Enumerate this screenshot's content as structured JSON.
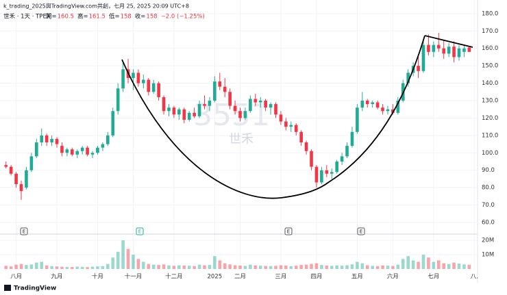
{
  "header": {
    "attribution": "k_trading_2025與TradingView.com共創，七月 25, 2025 20:09 UTC+8",
    "footer_logo": "TradingView"
  },
  "chart_data": {
    "type": "candlestick",
    "symbol": "世禾 · 1天 · TPEX",
    "legend_labels": [
      "開=",
      "高=",
      "低=",
      "收="
    ],
    "legend_change": "−2.0 (−1.25%)",
    "watermark": [
      "3551",
      "世禾"
    ],
    "earnings_markers": [
      "E",
      "E",
      "E",
      "E"
    ],
    "up_color": "#22ab94",
    "down_color": "#f23645",
    "grid": true,
    "categories": [
      null,
      null,
      "八月",
      null,
      null,
      null,
      null,
      null,
      null,
      null,
      "九月",
      null,
      null,
      null,
      null,
      null,
      null,
      null,
      "十月",
      null,
      null,
      null,
      null,
      null,
      null,
      "十一月",
      null,
      null,
      null,
      null,
      null,
      null,
      null,
      "十二月",
      null,
      null,
      null,
      null,
      null,
      null,
      null,
      "2025",
      null,
      null,
      null,
      null,
      "二月",
      null,
      null,
      null,
      null,
      null,
      null,
      null,
      "三月",
      null,
      null,
      null,
      null,
      null,
      null,
      "四月",
      null,
      null,
      null,
      null,
      null,
      null,
      null,
      "五月",
      null,
      null,
      null,
      null,
      null,
      null,
      "六月",
      null,
      null,
      null,
      null,
      null,
      null,
      null,
      "七月",
      null,
      null,
      null,
      null,
      null,
      null,
      null,
      "八."
    ],
    "ohlc": [
      [
        93,
        95,
        91,
        92
      ],
      [
        92,
        93,
        87,
        88
      ],
      [
        88,
        89,
        80,
        82
      ],
      [
        82,
        84,
        73,
        78
      ],
      [
        80,
        92,
        79,
        90
      ],
      [
        90,
        100,
        89,
        98
      ],
      [
        98,
        108,
        97,
        106
      ],
      [
        106,
        114,
        104,
        110
      ],
      [
        110,
        111,
        104,
        106
      ],
      [
        106,
        110,
        104,
        108
      ],
      [
        108,
        109,
        103,
        105
      ],
      [
        104,
        106,
        98,
        100
      ],
      [
        100,
        103,
        98,
        102
      ],
      [
        102,
        103,
        98,
        99
      ],
      [
        99,
        102,
        97,
        101
      ],
      [
        101,
        104,
        99,
        103
      ],
      [
        103,
        104,
        98,
        99
      ],
      [
        99,
        101,
        97,
        100
      ],
      [
        100,
        104,
        99,
        103
      ],
      [
        103,
        106,
        101,
        105
      ],
      [
        105,
        112,
        104,
        110
      ],
      [
        110,
        126,
        109,
        124
      ],
      [
        124,
        140,
        122,
        137
      ],
      [
        137,
        152,
        135,
        148
      ],
      [
        148,
        154,
        140,
        143
      ],
      [
        143,
        148,
        136,
        146
      ],
      [
        146,
        148,
        138,
        140
      ],
      [
        140,
        145,
        137,
        142
      ],
      [
        142,
        143,
        133,
        135
      ],
      [
        135,
        142,
        134,
        140
      ],
      [
        140,
        141,
        130,
        132
      ],
      [
        132,
        133,
        122,
        124
      ],
      [
        124,
        128,
        121,
        126
      ],
      [
        126,
        127,
        120,
        122
      ],
      [
        122,
        126,
        119,
        125
      ],
      [
        125,
        126,
        117,
        119
      ],
      [
        119,
        124,
        118,
        123
      ],
      [
        123,
        126,
        120,
        121
      ],
      [
        121,
        130,
        120,
        128
      ],
      [
        128,
        133,
        125,
        127
      ],
      [
        127,
        132,
        124,
        130
      ],
      [
        130,
        144,
        129,
        141
      ],
      [
        141,
        146,
        136,
        138
      ],
      [
        138,
        143,
        132,
        135
      ],
      [
        135,
        137,
        125,
        127
      ],
      [
        127,
        130,
        122,
        124
      ],
      [
        124,
        126,
        118,
        120
      ],
      [
        120,
        126,
        119,
        124
      ],
      [
        124,
        133,
        123,
        131
      ],
      [
        131,
        134,
        127,
        129
      ],
      [
        129,
        132,
        126,
        130
      ],
      [
        130,
        131,
        124,
        126
      ],
      [
        126,
        129,
        122,
        128
      ],
      [
        128,
        129,
        120,
        122
      ],
      [
        122,
        124,
        116,
        118
      ],
      [
        118,
        120,
        113,
        115
      ],
      [
        115,
        118,
        112,
        116
      ],
      [
        116,
        117,
        110,
        112
      ],
      [
        112,
        113,
        104,
        106
      ],
      [
        106,
        107,
        99,
        101
      ],
      [
        101,
        102,
        90,
        92
      ],
      [
        92,
        93,
        80,
        83
      ],
      [
        83,
        92,
        82,
        90
      ],
      [
        90,
        93,
        86,
        88
      ],
      [
        88,
        91,
        85,
        89
      ],
      [
        89,
        96,
        88,
        95
      ],
      [
        95,
        100,
        93,
        98
      ],
      [
        98,
        106,
        97,
        104
      ],
      [
        104,
        115,
        103,
        112
      ],
      [
        112,
        128,
        111,
        126
      ],
      [
        126,
        135,
        124,
        130
      ],
      [
        130,
        131,
        126,
        128
      ],
      [
        128,
        130,
        126,
        129
      ],
      [
        129,
        130,
        125,
        126
      ],
      [
        126,
        128,
        122,
        124
      ],
      [
        124,
        127,
        122,
        125
      ],
      [
        125,
        128,
        122,
        123
      ],
      [
        123,
        132,
        122,
        130
      ],
      [
        130,
        142,
        129,
        140
      ],
      [
        140,
        148,
        138,
        146
      ],
      [
        146,
        152,
        144,
        150
      ],
      [
        150,
        156,
        143,
        147
      ],
      [
        147,
        165,
        146,
        162
      ],
      [
        162,
        168,
        156,
        158
      ],
      [
        158,
        164,
        155,
        162
      ],
      [
        162,
        169,
        158,
        160
      ],
      [
        160,
        165,
        154,
        157
      ],
      [
        157,
        163,
        155,
        161
      ],
      [
        161,
        164,
        152,
        155
      ],
      [
        155,
        162,
        153,
        160
      ],
      [
        158,
        162,
        155,
        160
      ],
      [
        160.5,
        161.5,
        158.0,
        158.0
      ],
      null
    ],
    "volume": [
      2200000,
      1800000,
      3000000,
      3500000,
      2800000,
      3200000,
      4500000,
      5000000,
      2500000,
      2000000,
      1800000,
      1600000,
      1500000,
      1400000,
      1700000,
      1500000,
      1300000,
      1600000,
      1800000,
      2000000,
      3500000,
      8000000,
      12000000,
      20000000,
      14000000,
      10000000,
      7000000,
      5000000,
      3500000,
      3000000,
      2800000,
      3200000,
      2500000,
      2200000,
      2600000,
      2400000,
      2300000,
      2000000,
      3000000,
      2600000,
      2800000,
      9000000,
      6000000,
      4000000,
      3200000,
      2600000,
      2400000,
      2200000,
      3000000,
      2500000,
      2300000,
      2100000,
      2000000,
      2200000,
      2600000,
      2400000,
      2000000,
      2300000,
      2800000,
      3000000,
      3500000,
      4000000,
      2800000,
      2400000,
      2200000,
      2500000,
      2300000,
      2600000,
      3200000,
      5000000,
      4000000,
      2600000,
      2200000,
      2000000,
      2400000,
      2300000,
      2100000,
      3000000,
      7000000,
      9000000,
      6000000,
      5000000,
      10000000,
      8000000,
      5000000,
      6000000,
      4000000,
      3500000,
      4500000,
      3800000,
      3200000,
      3000000,
      null
    ],
    "ylim": [
      54.1,
      183.1
    ],
    "yticks": [
      {
        "value": 60,
        "label": "60.0"
      },
      {
        "value": 70,
        "label": "70.0"
      },
      {
        "value": 80,
        "label": "80.0"
      },
      {
        "value": 90,
        "label": "90.0"
      },
      {
        "value": 100,
        "label": "100.0"
      },
      {
        "value": 110,
        "label": "110.0"
      },
      {
        "value": 120,
        "label": "120.0"
      },
      {
        "value": 130,
        "label": "130.0"
      },
      {
        "value": 140,
        "label": "140.0"
      },
      {
        "value": 150,
        "label": "150.0"
      },
      {
        "value": 160,
        "label": "160.0"
      },
      {
        "value": 170,
        "label": "170.0"
      },
      {
        "value": 180,
        "label": "180.0"
      }
    ],
    "volume_ylim": [
      0,
      22900000
    ],
    "volume_ticks": [
      {
        "value": 10000000,
        "label": "10M"
      },
      {
        "value": 20000000,
        "label": "20M"
      }
    ]
  }
}
